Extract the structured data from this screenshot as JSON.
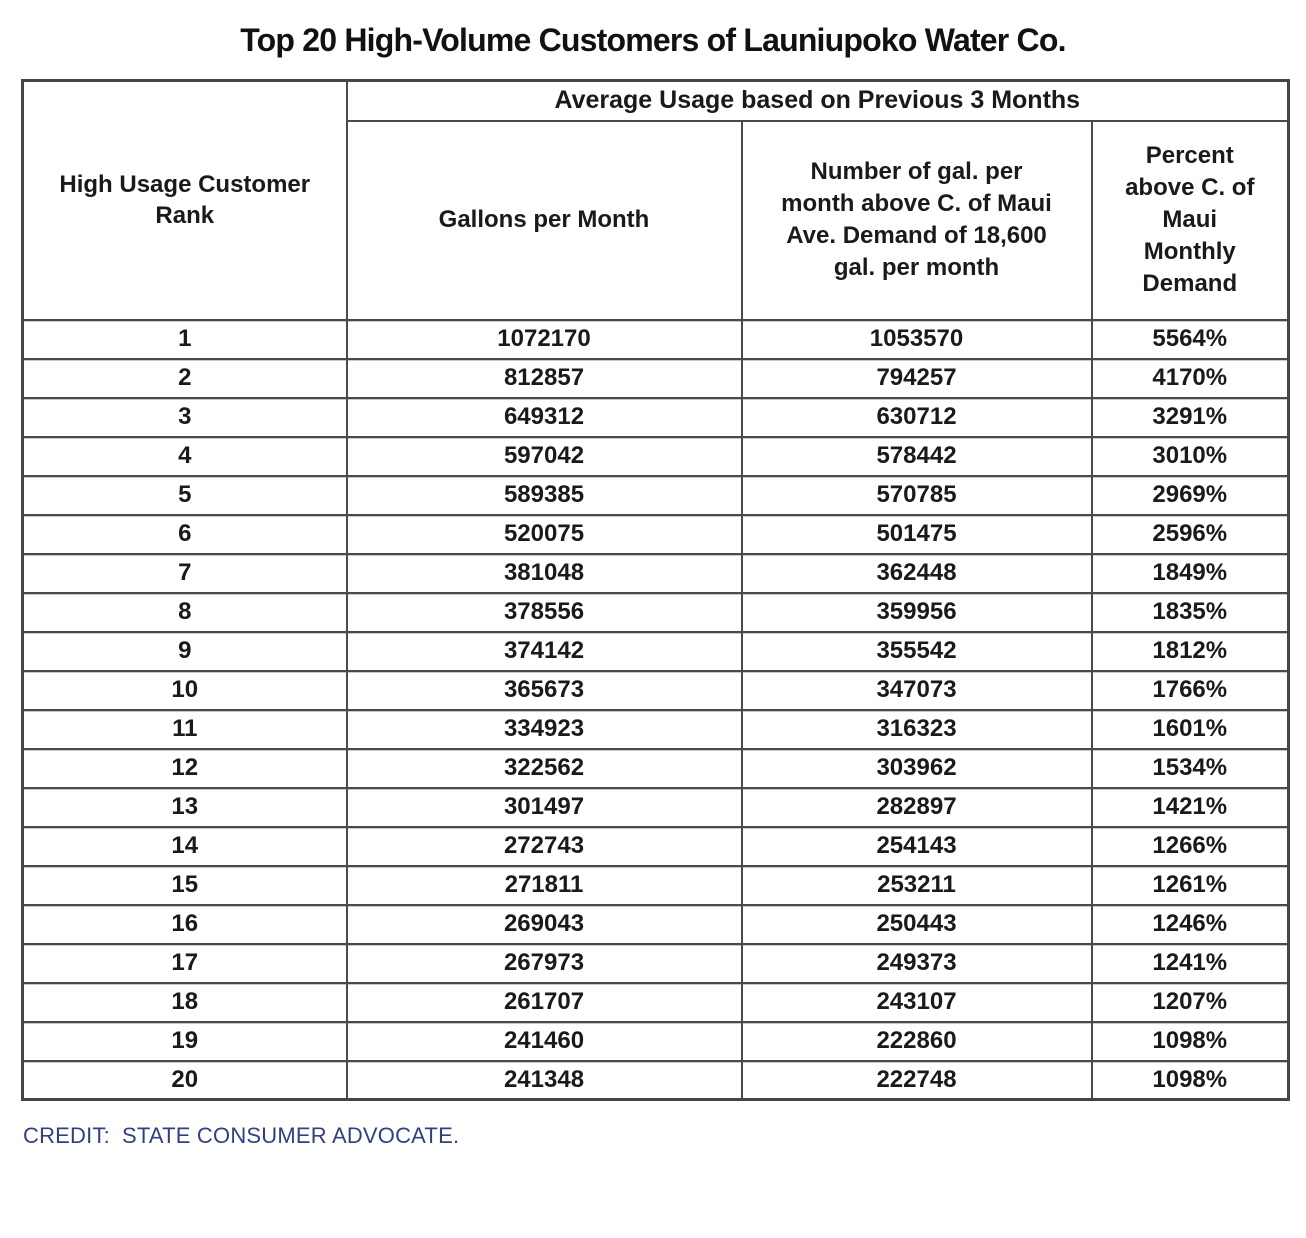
{
  "title": "Top 20 High-Volume Customers of Launiupoko Water Co.",
  "table": {
    "span_header": "Average Usage based on Previous 3 Months",
    "col_headers": {
      "rank": "High Usage Customer\nRank",
      "gallons": "Gallons per Month",
      "above": "Number of gal. per\nmonth above C. of Maui\nAve. Demand of 18,600\ngal. per month",
      "percent": "Percent\nabove C. of\nMaui\nMonthly\nDemand"
    }
  },
  "credit": {
    "label": "CREDIT:",
    "text": "STATE CONSUMER ADVOCATE."
  },
  "colors": {
    "border_gray": "#4a4a4a",
    "credit_blue": "#333F7E",
    "text_black": "#111111"
  },
  "chart_data": {
    "type": "table",
    "title": "Top 20 High-Volume Customers of Launiupoko Water Co.",
    "group_header": "Average Usage based on Previous 3 Months",
    "group_header_spans_columns": [
      2,
      3,
      4
    ],
    "columns": [
      "High Usage Customer Rank",
      "Gallons per Month",
      "Number of gal. per month above C. of Maui Ave. Demand of 18,600 gal. per month",
      "Percent above C. of Maui Monthly Demand"
    ],
    "rows": [
      [
        1,
        1072170,
        1053570,
        "5564%"
      ],
      [
        2,
        812857,
        794257,
        "4170%"
      ],
      [
        3,
        649312,
        630712,
        "3291%"
      ],
      [
        4,
        597042,
        578442,
        "3010%"
      ],
      [
        5,
        589385,
        570785,
        "2969%"
      ],
      [
        6,
        520075,
        501475,
        "2596%"
      ],
      [
        7,
        381048,
        362448,
        "1849%"
      ],
      [
        8,
        378556,
        359956,
        "1835%"
      ],
      [
        9,
        374142,
        355542,
        "1812%"
      ],
      [
        10,
        365673,
        347073,
        "1766%"
      ],
      [
        11,
        334923,
        316323,
        "1601%"
      ],
      [
        12,
        322562,
        303962,
        "1534%"
      ],
      [
        13,
        301497,
        282897,
        "1421%"
      ],
      [
        14,
        272743,
        254143,
        "1266%"
      ],
      [
        15,
        271811,
        253211,
        "1261%"
      ],
      [
        16,
        269043,
        250443,
        "1246%"
      ],
      [
        17,
        267973,
        249373,
        "1241%"
      ],
      [
        18,
        261707,
        243107,
        "1207%"
      ],
      [
        19,
        241460,
        222860,
        "1098%"
      ],
      [
        20,
        241348,
        222748,
        "1098%"
      ]
    ],
    "credit": "CREDIT: STATE CONSUMER ADVOCATE."
  }
}
